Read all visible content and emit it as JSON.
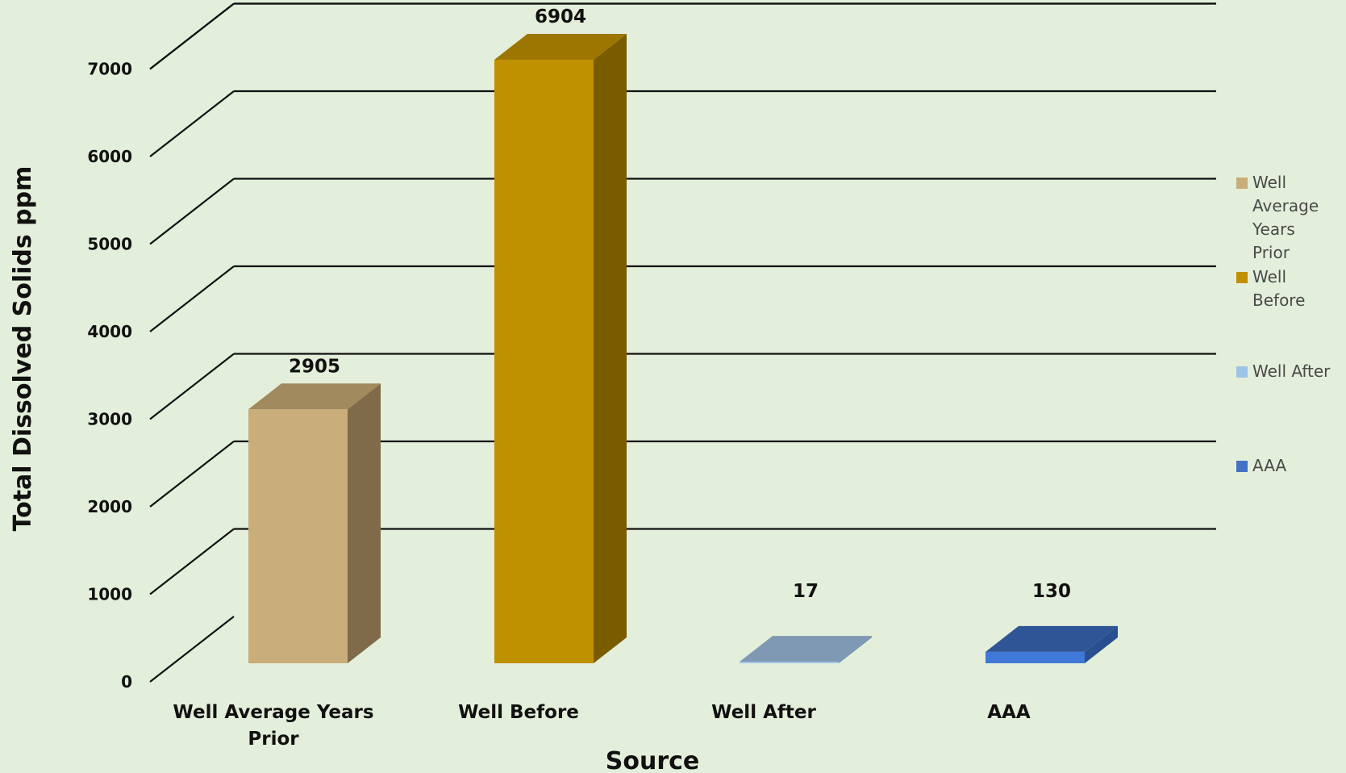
{
  "chart_data": {
    "type": "bar",
    "categories": [
      "Well Average Years Prior",
      "Well Before",
      "Well After",
      "AAA"
    ],
    "category_label_lines": [
      [
        "Well Average Years",
        "Prior"
      ],
      [
        "Well Before"
      ],
      [
        "Well After"
      ],
      [
        "AAA"
      ]
    ],
    "values": [
      2905,
      6904,
      17,
      130
    ],
    "xlabel": "Source",
    "ylabel": "Total Dissolved Solids ppm",
    "ylim": [
      0,
      7000
    ],
    "yticks": [
      0,
      1000,
      2000,
      3000,
      4000,
      5000,
      6000,
      7000
    ],
    "grid": true,
    "legend_position": "right",
    "legend": [
      {
        "label_lines": [
          "Well",
          "Average",
          "Years",
          "Prior"
        ],
        "color": "#c9ad7a"
      },
      {
        "label_lines": [
          "Well",
          "Before"
        ],
        "color": "#bf9000"
      },
      {
        "label_lines": [
          "Well After"
        ],
        "color": "#9dc3e6"
      },
      {
        "label_lines": [
          "AAA"
        ],
        "color": "#4472c4"
      }
    ],
    "bar_colors": [
      {
        "front": "#c9ad7a",
        "side": "#7f6b4a",
        "top": "#a08a5e"
      },
      {
        "front": "#bf9000",
        "side": "#7a5c00",
        "top": "#9c7600"
      },
      {
        "front": "#9dc3e6",
        "side": "#6d8fae",
        "top": "#7f99b4"
      },
      {
        "front": "#3f78d6",
        "side": "#2a4f8f",
        "top": "#2f5597"
      }
    ],
    "background": "#e3efda"
  }
}
